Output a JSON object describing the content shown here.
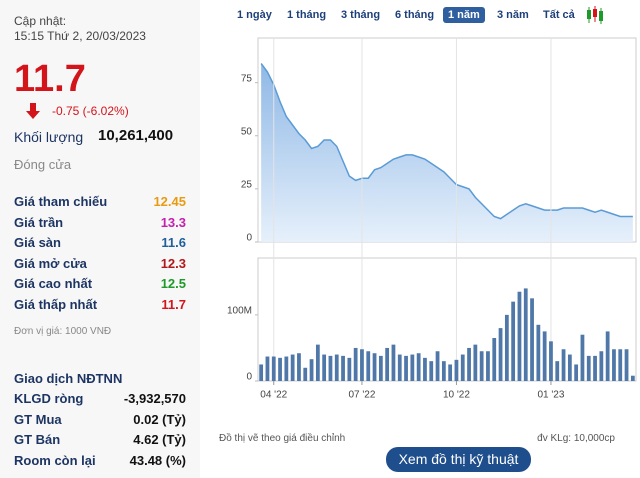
{
  "header": {
    "label": "Cập nhật:",
    "time": "15:15 Thứ 2, 20/03/2023"
  },
  "price": "11.7",
  "change": "-0.75 (-6.02%)",
  "volume": {
    "label": "Khối lượng",
    "value": "10,261,400"
  },
  "status": "Đóng cửa",
  "price_rows": [
    {
      "label": "Giá tham chiếu",
      "value": "12.45",
      "color": "#e89b12"
    },
    {
      "label": "Giá trần",
      "value": "13.3",
      "color": "#c51fae"
    },
    {
      "label": "Giá sàn",
      "value": "11.6",
      "color": "#1f5f9a"
    },
    {
      "label": "Giá mở cửa",
      "value": "12.3",
      "color": "#b3171c"
    },
    {
      "label": "Giá cao nhất",
      "value": "12.5",
      "color": "#1d9a2a"
    },
    {
      "label": "Giá thấp nhất",
      "value": "11.7",
      "color": "#d3141b"
    }
  ],
  "unit_note": "Đơn vị giá: 1000 VNĐ",
  "foreign": {
    "title": "Giao dịch NĐTNN",
    "rows": [
      [
        "KLGD ròng",
        "-3,932,570"
      ],
      [
        "GT Mua",
        "0.02 (Tỷ)"
      ],
      [
        "GT Bán",
        "4.62 (Tỷ)"
      ],
      [
        "Room còn lại",
        "43.48 (%)"
      ]
    ]
  },
  "ranges": [
    "1 ngày",
    "1 tháng",
    "3 tháng",
    "6 tháng",
    "1 năm",
    "3 năm",
    "Tất cả"
  ],
  "active_range": 4,
  "note_left": "Đồ thị vẽ theo giá điều chỉnh",
  "note_right": "đv KLg: 10,000cp",
  "button": "Xem đồ thị kỹ thuật",
  "chart_data": [
    {
      "type": "area",
      "color": "#5b9bd5",
      "values": [
        84,
        80,
        74,
        66,
        59,
        55,
        51,
        48,
        44,
        45,
        48,
        48,
        45,
        38,
        31,
        29,
        30,
        30,
        34,
        35,
        37,
        39,
        40,
        41,
        41,
        40,
        39,
        37,
        35,
        33,
        30,
        27,
        26,
        25,
        21,
        18,
        15,
        12,
        11,
        13,
        15,
        17,
        18,
        17,
        16,
        15,
        15,
        15,
        16,
        16,
        16,
        16,
        15,
        14,
        15,
        14,
        13,
        12,
        12,
        12
      ],
      "xlim": [
        -0.5,
        59.5
      ],
      "ylim": [
        0,
        96
      ],
      "yticks": [
        0,
        25,
        50,
        75
      ]
    },
    {
      "type": "bar",
      "color": "#4f77a8",
      "values": [
        25000000,
        37000000,
        37000000,
        35000000,
        37000000,
        40000000,
        42000000,
        20000000,
        33000000,
        55000000,
        40000000,
        38000000,
        40000000,
        38000000,
        35000000,
        50000000,
        48000000,
        45000000,
        42000000,
        38000000,
        50000000,
        55000000,
        40000000,
        38000000,
        40000000,
        42000000,
        35000000,
        30000000,
        45000000,
        30000000,
        25000000,
        32000000,
        40000000,
        50000000,
        55000000,
        45000000,
        45000000,
        65000000,
        80000000,
        100000000,
        120000000,
        135000000,
        140000000,
        125000000,
        85000000,
        75000000,
        60000000,
        30000000,
        48000000,
        40000000,
        25000000,
        70000000,
        38000000,
        38000000,
        45000000,
        75000000,
        48000000,
        48000000,
        48000000,
        8000000
      ],
      "xlim": [
        -0.5,
        59.5
      ],
      "ylim": [
        0,
        186000000
      ],
      "yticks": [
        0,
        {
          "value": 100000000,
          "label": "100M"
        }
      ],
      "xticks": [
        {
          "value": 2,
          "label": "04 '22"
        },
        {
          "value": 16,
          "label": "07 '22"
        },
        {
          "value": 31,
          "label": "10 '22"
        },
        {
          "value": 46,
          "label": "01 '23"
        }
      ]
    }
  ]
}
